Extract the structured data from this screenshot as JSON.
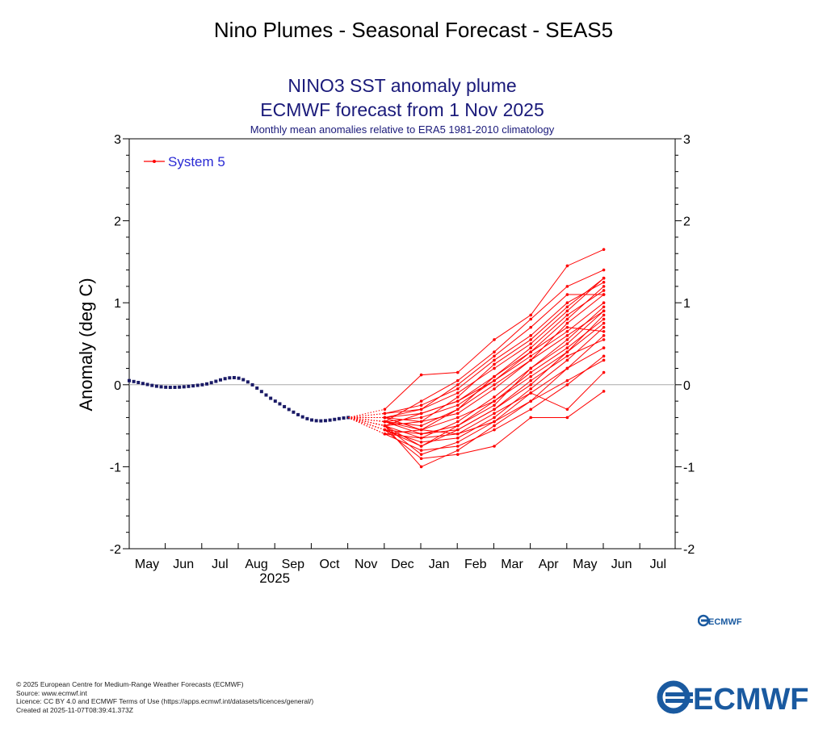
{
  "page_title": "Nino Plumes - Seasonal Forecast - SEAS5",
  "chart_data": {
    "type": "line",
    "title": "NINO3 SST anomaly plume",
    "subtitle": "ECMWF forecast from 1 Nov 2025",
    "note": "Monthly mean anomalies relative to ERA5 1981-2010 climatology",
    "ylabel": "Anomaly (deg C)",
    "xlabel": "",
    "ylim": [
      -2,
      3
    ],
    "yticks": [
      -2,
      -1,
      0,
      1,
      2,
      3
    ],
    "x_months": [
      "May",
      "Jun",
      "Jul",
      "Aug",
      "Sep",
      "Oct",
      "Nov",
      "Dec",
      "Jan",
      "Feb",
      "Mar",
      "Apr",
      "May",
      "Jun",
      "Jul"
    ],
    "year_label": "2025",
    "legend": {
      "entries": [
        "System 5"
      ],
      "placement": "top-left"
    },
    "colors": {
      "observed": "#1a1a66",
      "forecast": "#ff0000",
      "legend_text": "#2a2ad4",
      "zero_line": "#aaaaaa"
    },
    "observed": {
      "x": [
        "2025-04",
        "2025-05",
        "2025-06",
        "2025-07",
        "2025-08",
        "2025-09",
        "2025-10"
      ],
      "values": [
        0.05,
        -0.03,
        0.0,
        0.08,
        -0.2,
        -0.43,
        -0.4
      ]
    },
    "forecast": {
      "name": "System 5",
      "start": {
        "x": "2025-10",
        "value": -0.4
      },
      "x": [
        "2025-11",
        "2025-12",
        "2026-01",
        "2026-02",
        "2026-03",
        "2026-04",
        "2026-05"
      ],
      "members": [
        [
          -0.45,
          -0.6,
          -0.55,
          -0.3,
          0.0,
          0.4,
          0.85
        ],
        [
          -0.5,
          -0.45,
          -0.35,
          -0.05,
          0.3,
          0.75,
          1.1
        ],
        [
          -0.4,
          -0.55,
          -0.6,
          -0.45,
          -0.2,
          0.2,
          0.6
        ],
        [
          -0.55,
          -0.7,
          -0.65,
          -0.4,
          -0.05,
          0.3,
          0.7
        ],
        [
          -0.35,
          -0.3,
          -0.1,
          0.2,
          0.5,
          0.9,
          1.3
        ],
        [
          -0.6,
          -0.8,
          -0.75,
          -0.55,
          -0.3,
          0.0,
          0.35
        ],
        [
          -0.45,
          -0.2,
          0.05,
          0.4,
          0.8,
          1.2,
          1.4
        ],
        [
          -0.5,
          -0.65,
          -0.45,
          -0.15,
          0.2,
          0.55,
          0.95
        ],
        [
          -0.4,
          -0.35,
          -0.2,
          0.1,
          0.4,
          0.8,
          1.2
        ],
        [
          -0.55,
          -0.9,
          -0.85,
          -0.75,
          -0.4,
          -0.4,
          -0.08
        ],
        [
          -0.3,
          0.12,
          0.15,
          0.55,
          0.85,
          1.45,
          1.65
        ],
        [
          -0.5,
          -1.0,
          -0.8,
          -0.5,
          -0.2,
          0.05,
          0.3
        ],
        [
          -0.45,
          -0.5,
          -0.3,
          0.0,
          0.3,
          0.6,
          0.9
        ],
        [
          -0.6,
          -0.55,
          -0.4,
          -0.2,
          0.1,
          0.4,
          0.75
        ],
        [
          -0.35,
          -0.25,
          -0.05,
          0.3,
          0.6,
          1.0,
          1.25
        ],
        [
          -0.5,
          -0.75,
          -0.55,
          -0.3,
          0.05,
          0.35,
          0.55
        ],
        [
          -0.45,
          -0.4,
          -0.25,
          0.05,
          0.35,
          0.65,
          1.0
        ],
        [
          -0.55,
          -0.6,
          -0.5,
          -0.2,
          0.15,
          0.45,
          0.8
        ],
        [
          -0.4,
          -0.3,
          0.0,
          0.35,
          0.7,
          1.1,
          1.1
        ],
        [
          -0.5,
          -0.85,
          -0.7,
          -0.45,
          -0.1,
          -0.3,
          0.15
        ],
        [
          -0.45,
          -0.55,
          -0.3,
          0.1,
          0.45,
          0.85,
          1.15
        ],
        [
          -0.6,
          -0.65,
          -0.6,
          -0.35,
          -0.1,
          0.2,
          0.45
        ],
        [
          -0.4,
          -0.45,
          -0.15,
          0.25,
          0.55,
          0.95,
          1.3
        ],
        [
          -0.5,
          -0.35,
          -0.2,
          0.05,
          0.4,
          0.7,
          0.65
        ],
        [
          -0.55,
          -0.75,
          -0.5,
          -0.25,
          0.2,
          0.5,
          0.9
        ]
      ]
    }
  },
  "footer": {
    "copyright": "© 2025 European Centre for Medium-Range Weather Forecasts (ECMWF)",
    "source": "Source: www.ecmwf.int",
    "licence": "Licence: CC BY 4.0 and ECMWF Terms of Use (https://apps.ecmwf.int/datasets/licences/general/)",
    "created": "Created at 2025-11-07T08:39:41.373Z"
  },
  "logos": {
    "small": "ECMWF",
    "big": "ECMWF"
  }
}
